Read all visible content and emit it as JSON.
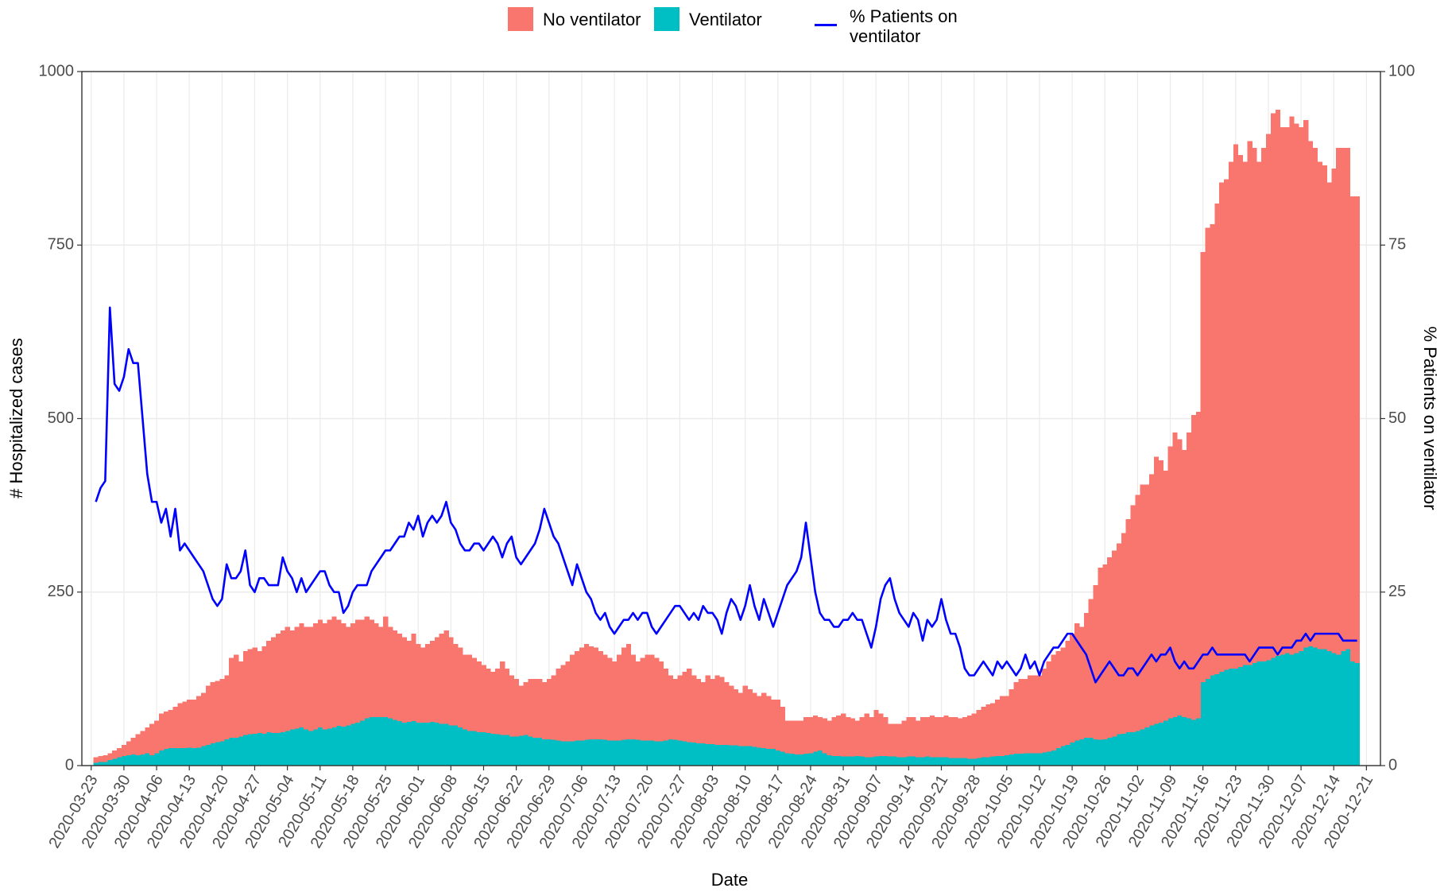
{
  "chart_data": {
    "type": "bar",
    "stacked": true,
    "x_label": "Date",
    "y_label": "# Hospitalized cases",
    "y2_label": "% Patients on ventilator",
    "xlim": [
      "2020-03-21",
      "2020-12-24"
    ],
    "xticks": [
      "2020-03-23",
      "2020-03-30",
      "2020-04-06",
      "2020-04-13",
      "2020-04-20",
      "2020-04-27",
      "2020-05-04",
      "2020-05-11",
      "2020-05-18",
      "2020-05-25",
      "2020-06-01",
      "2020-06-08",
      "2020-06-15",
      "2020-06-22",
      "2020-06-29",
      "2020-07-06",
      "2020-07-13",
      "2020-07-20",
      "2020-07-27",
      "2020-08-03",
      "2020-08-10",
      "2020-08-17",
      "2020-08-24",
      "2020-08-31",
      "2020-09-07",
      "2020-09-14",
      "2020-09-21",
      "2020-09-28",
      "2020-10-05",
      "2020-10-12",
      "2020-10-19",
      "2020-10-26",
      "2020-11-02",
      "2020-11-09",
      "2020-11-16",
      "2020-11-23",
      "2020-11-30",
      "2020-12-07",
      "2020-12-14",
      "2020-12-21"
    ],
    "ylim": [
      0,
      1000
    ],
    "yticks": [
      0,
      250,
      500,
      750,
      1000
    ],
    "y2lim": [
      0,
      100
    ],
    "y2ticks": [
      0,
      25,
      50,
      75,
      100
    ],
    "grid": true,
    "x": [
      "2020-03-24",
      "2020-03-25",
      "2020-03-26",
      "2020-03-27",
      "2020-03-28",
      "2020-03-29",
      "2020-03-30",
      "2020-03-31",
      "2020-04-01",
      "2020-04-02",
      "2020-04-03",
      "2020-04-04",
      "2020-04-05",
      "2020-04-06",
      "2020-04-07",
      "2020-04-08",
      "2020-04-09",
      "2020-04-10",
      "2020-04-11",
      "2020-04-12",
      "2020-04-13",
      "2020-04-14",
      "2020-04-15",
      "2020-04-16",
      "2020-04-17",
      "2020-04-18",
      "2020-04-19",
      "2020-04-20",
      "2020-04-21",
      "2020-04-22",
      "2020-04-23",
      "2020-04-24",
      "2020-04-25",
      "2020-04-26",
      "2020-04-27",
      "2020-04-28",
      "2020-04-29",
      "2020-04-30",
      "2020-05-01",
      "2020-05-02",
      "2020-05-03",
      "2020-05-04",
      "2020-05-05",
      "2020-05-06",
      "2020-05-07",
      "2020-05-08",
      "2020-05-09",
      "2020-05-10",
      "2020-05-11",
      "2020-05-12",
      "2020-05-13",
      "2020-05-14",
      "2020-05-15",
      "2020-05-16",
      "2020-05-17",
      "2020-05-18",
      "2020-05-19",
      "2020-05-20",
      "2020-05-21",
      "2020-05-22",
      "2020-05-23",
      "2020-05-24",
      "2020-05-25",
      "2020-05-26",
      "2020-05-27",
      "2020-05-28",
      "2020-05-29",
      "2020-05-30",
      "2020-05-31",
      "2020-06-01",
      "2020-06-02",
      "2020-06-03",
      "2020-06-04",
      "2020-06-05",
      "2020-06-06",
      "2020-06-07",
      "2020-06-08",
      "2020-06-09",
      "2020-06-10",
      "2020-06-11",
      "2020-06-12",
      "2020-06-13",
      "2020-06-14",
      "2020-06-15",
      "2020-06-16",
      "2020-06-17",
      "2020-06-18",
      "2020-06-19",
      "2020-06-20",
      "2020-06-21",
      "2020-06-22",
      "2020-06-23",
      "2020-06-24",
      "2020-06-25",
      "2020-06-26",
      "2020-06-27",
      "2020-06-28",
      "2020-06-29",
      "2020-06-30",
      "2020-07-01",
      "2020-07-02",
      "2020-07-03",
      "2020-07-04",
      "2020-07-05",
      "2020-07-06",
      "2020-07-07",
      "2020-07-08",
      "2020-07-09",
      "2020-07-10",
      "2020-07-11",
      "2020-07-12",
      "2020-07-13",
      "2020-07-14",
      "2020-07-15",
      "2020-07-16",
      "2020-07-17",
      "2020-07-18",
      "2020-07-19",
      "2020-07-20",
      "2020-07-21",
      "2020-07-22",
      "2020-07-23",
      "2020-07-24",
      "2020-07-25",
      "2020-07-26",
      "2020-07-27",
      "2020-07-28",
      "2020-07-29",
      "2020-07-30",
      "2020-07-31",
      "2020-08-01",
      "2020-08-02",
      "2020-08-03",
      "2020-08-04",
      "2020-08-05",
      "2020-08-06",
      "2020-08-07",
      "2020-08-08",
      "2020-08-09",
      "2020-08-10",
      "2020-08-11",
      "2020-08-12",
      "2020-08-13",
      "2020-08-14",
      "2020-08-15",
      "2020-08-16",
      "2020-08-17",
      "2020-08-18",
      "2020-08-19",
      "2020-08-20",
      "2020-08-21",
      "2020-08-22",
      "2020-08-23",
      "2020-08-24",
      "2020-08-25",
      "2020-08-26",
      "2020-08-27",
      "2020-08-28",
      "2020-08-29",
      "2020-08-30",
      "2020-08-31",
      "2020-09-01",
      "2020-09-02",
      "2020-09-03",
      "2020-09-04",
      "2020-09-05",
      "2020-09-06",
      "2020-09-07",
      "2020-09-08",
      "2020-09-09",
      "2020-09-10",
      "2020-09-11",
      "2020-09-12",
      "2020-09-13",
      "2020-09-14",
      "2020-09-15",
      "2020-09-16",
      "2020-09-17",
      "2020-09-18",
      "2020-09-19",
      "2020-09-20",
      "2020-09-21",
      "2020-09-22",
      "2020-09-23",
      "2020-09-24",
      "2020-09-25",
      "2020-09-26",
      "2020-09-27",
      "2020-09-28",
      "2020-09-29",
      "2020-09-30",
      "2020-10-01",
      "2020-10-02",
      "2020-10-03",
      "2020-10-04",
      "2020-10-05",
      "2020-10-06",
      "2020-10-07",
      "2020-10-08",
      "2020-10-09",
      "2020-10-10",
      "2020-10-11",
      "2020-10-12",
      "2020-10-13",
      "2020-10-14",
      "2020-10-15",
      "2020-10-16",
      "2020-10-17",
      "2020-10-18",
      "2020-10-19",
      "2020-10-20",
      "2020-10-21",
      "2020-10-22",
      "2020-10-23",
      "2020-10-24",
      "2020-10-25",
      "2020-10-26",
      "2020-10-27",
      "2020-10-28",
      "2020-10-29",
      "2020-10-30",
      "2020-10-31",
      "2020-11-01",
      "2020-11-02",
      "2020-11-03",
      "2020-11-04",
      "2020-11-05",
      "2020-11-06",
      "2020-11-07",
      "2020-11-08",
      "2020-11-09",
      "2020-11-10",
      "2020-11-11",
      "2020-11-12",
      "2020-11-13",
      "2020-11-14",
      "2020-11-15",
      "2020-11-16",
      "2020-11-17",
      "2020-11-18",
      "2020-11-19",
      "2020-11-20",
      "2020-11-21",
      "2020-11-22",
      "2020-11-23",
      "2020-11-24",
      "2020-11-25",
      "2020-11-26",
      "2020-11-27",
      "2020-11-28",
      "2020-11-29",
      "2020-11-30",
      "2020-12-01",
      "2020-12-02",
      "2020-12-03",
      "2020-12-04",
      "2020-12-05",
      "2020-12-06",
      "2020-12-07",
      "2020-12-08",
      "2020-12-09",
      "2020-12-10",
      "2020-12-11",
      "2020-12-12",
      "2020-12-13",
      "2020-12-14",
      "2020-12-15",
      "2020-12-16",
      "2020-12-17",
      "2020-12-18",
      "2020-12-19"
    ],
    "series": [
      {
        "name": "No ventilator",
        "color": "#F8766D",
        "values": [
          8,
          9,
          10,
          10,
          12,
          13,
          16,
          20,
          24,
          30,
          34,
          37,
          45,
          47,
          53,
          54,
          55,
          60,
          65,
          67,
          69,
          70,
          74,
          77,
          85,
          88,
          88,
          90,
          92,
          115,
          120,
          108,
          121,
          123,
          124,
          118,
          126,
          132,
          138,
          143,
          147,
          150,
          143,
          147,
          150,
          148,
          150,
          153,
          155,
          153,
          157,
          160,
          153,
          149,
          142,
          145,
          148,
          145,
          147,
          140,
          135,
          130,
          145,
          132,
          129,
          126,
          123,
          117,
          126,
          113,
          108,
          113,
          117,
          123,
          130,
          135,
          127,
          117,
          115,
          108,
          110,
          105,
          102,
          97,
          93,
          89,
          95,
          106,
          96,
          88,
          83,
          72,
          76,
          83,
          85,
          85,
          82,
          87,
          93,
          104,
          110,
          115,
          125,
          129,
          134,
          138,
          134,
          132,
          127,
          123,
          119,
          114,
          124,
          133,
          137,
          122,
          113,
          119,
          124,
          124,
          120,
          115,
          104,
          92,
          88,
          94,
          100,
          106,
          97,
          93,
          88,
          99,
          94,
          100,
          98,
          90,
          86,
          81,
          77,
          87,
          82,
          78,
          74,
          80,
          76,
          71,
          73,
          65,
          47,
          48,
          49,
          49,
          53,
          52,
          52,
          48,
          50,
          50,
          56,
          58,
          62,
          57,
          55,
          51,
          57,
          63,
          58,
          67,
          61,
          56,
          47,
          47,
          48,
          53,
          57,
          57,
          53,
          58,
          57,
          60,
          58,
          58,
          60,
          59,
          59,
          57,
          59,
          62,
          65,
          69,
          73,
          76,
          77,
          81,
          86,
          85,
          94,
          103,
          108,
          107,
          112,
          112,
          112,
          121,
          130,
          138,
          140,
          142,
          150,
          157,
          169,
          162,
          180,
          200,
          222,
          248,
          252,
          260,
          268,
          275,
          289,
          307,
          327,
          340,
          353,
          350,
          362,
          385,
          378,
          360,
          392,
          410,
          398,
          385,
          412,
          439,
          442,
          620,
          650,
          650,
          678,
          705,
          707,
          730,
          755,
          738,
          725,
          755,
          742,
          720,
          740,
          758,
          785,
          787,
          760,
          758,
          775,
          763,
          755,
          760,
          728,
          720,
          702,
          697,
          675,
          698,
          730,
          725,
          722,
          670,
          672
        ]
      },
      {
        "name": "Ventilator",
        "color": "#00BFC4",
        "values": [
          4,
          5,
          5,
          8,
          10,
          12,
          14,
          15,
          16,
          15,
          16,
          18,
          15,
          18,
          22,
          24,
          25,
          25,
          25,
          25,
          26,
          25,
          26,
          28,
          30,
          32,
          34,
          35,
          38,
          40,
          40,
          42,
          44,
          45,
          46,
          47,
          46,
          48,
          47,
          47,
          48,
          50,
          52,
          53,
          55,
          52,
          50,
          52,
          55,
          52,
          53,
          55,
          57,
          56,
          58,
          60,
          62,
          65,
          68,
          70,
          70,
          70,
          70,
          68,
          66,
          64,
          62,
          63,
          64,
          62,
          62,
          62,
          63,
          62,
          60,
          60,
          58,
          58,
          55,
          52,
          50,
          50,
          48,
          48,
          47,
          46,
          45,
          44,
          44,
          42,
          42,
          43,
          44,
          42,
          40,
          40,
          38,
          38,
          37,
          36,
          35,
          35,
          35,
          36,
          36,
          37,
          38,
          38,
          38,
          37,
          36,
          36,
          36,
          37,
          38,
          38,
          37,
          36,
          36,
          36,
          35,
          35,
          36,
          38,
          37,
          36,
          35,
          34,
          33,
          32,
          32,
          31,
          31,
          30,
          30,
          30,
          29,
          29,
          28,
          28,
          28,
          27,
          26,
          25,
          24,
          24,
          22,
          20,
          18,
          17,
          16,
          16,
          17,
          18,
          20,
          22,
          18,
          15,
          14,
          14,
          13,
          13,
          13,
          14,
          13,
          12,
          12,
          13,
          14,
          14,
          13,
          13,
          12,
          12,
          13,
          13,
          12,
          12,
          13,
          12,
          12,
          12,
          12,
          11,
          11,
          11,
          11,
          10,
          10,
          11,
          12,
          12,
          13,
          14,
          14,
          15,
          16,
          17,
          17,
          18,
          18,
          18,
          18,
          19,
          20,
          22,
          25,
          28,
          30,
          33,
          36,
          38,
          40,
          40,
          38,
          37,
          38,
          40,
          42,
          45,
          46,
          48,
          48,
          50,
          52,
          55,
          58,
          60,
          62,
          65,
          68,
          70,
          72,
          70,
          68,
          66,
          68,
          120,
          125,
          130,
          132,
          135,
          138,
          140,
          140,
          142,
          145,
          145,
          148,
          150,
          150,
          152,
          155,
          158,
          160,
          162,
          160,
          162,
          165,
          170,
          172,
          170,
          168,
          168,
          165,
          162,
          160,
          165,
          168,
          150,
          148
        ]
      },
      {
        "name": "% Patients on\nventilator",
        "color": "#0000FF",
        "type": "line",
        "axis": "y2",
        "values": [
          38,
          40,
          41,
          66,
          55,
          54,
          56,
          60,
          58,
          58,
          50,
          42,
          38,
          38,
          35,
          37,
          33,
          37,
          31,
          32,
          31,
          30,
          29,
          28,
          26,
          24,
          23,
          24,
          29,
          27,
          27,
          28,
          31,
          26,
          25,
          27,
          27,
          26,
          26,
          26,
          30,
          28,
          27,
          25,
          27,
          25,
          26,
          27,
          28,
          28,
          26,
          25,
          25,
          22,
          23,
          25,
          26,
          26,
          26,
          28,
          29,
          30,
          31,
          31,
          32,
          33,
          33,
          35,
          34,
          36,
          33,
          35,
          36,
          35,
          36,
          38,
          35,
          34,
          32,
          31,
          31,
          32,
          32,
          31,
          32,
          33,
          32,
          30,
          32,
          33,
          30,
          29,
          30,
          31,
          32,
          34,
          37,
          35,
          33,
          32,
          30,
          28,
          26,
          29,
          27,
          25,
          24,
          22,
          21,
          22,
          20,
          19,
          20,
          21,
          21,
          22,
          21,
          22,
          22,
          20,
          19,
          20,
          21,
          22,
          23,
          23,
          22,
          21,
          22,
          21,
          23,
          22,
          22,
          21,
          19,
          22,
          24,
          23,
          21,
          23,
          26,
          23,
          21,
          24,
          22,
          20,
          22,
          24,
          26,
          27,
          28,
          30,
          35,
          30,
          25,
          22,
          21,
          21,
          20,
          20,
          21,
          21,
          22,
          21,
          21,
          19,
          17,
          20,
          24,
          26,
          27,
          24,
          22,
          21,
          20,
          22,
          21,
          18,
          21,
          20,
          21,
          24,
          21,
          19,
          19,
          17,
          14,
          13,
          13,
          14,
          15,
          14,
          13,
          15,
          14,
          15,
          14,
          13,
          14,
          16,
          14,
          15,
          13,
          15,
          16,
          17,
          17,
          18,
          19,
          19,
          18,
          17,
          16,
          14,
          12,
          13,
          14,
          15,
          14,
          13,
          13,
          14,
          14,
          13,
          14,
          15,
          16,
          15,
          16,
          16,
          17,
          15,
          14,
          15,
          14,
          14,
          15,
          16,
          16,
          17,
          16,
          16,
          16,
          16,
          16,
          16,
          16,
          15,
          16,
          17,
          17,
          17,
          17,
          16,
          17,
          17,
          17,
          18,
          18,
          19,
          18,
          19,
          19,
          19,
          19,
          19,
          19,
          18,
          18,
          18,
          18
        ]
      }
    ]
  }
}
